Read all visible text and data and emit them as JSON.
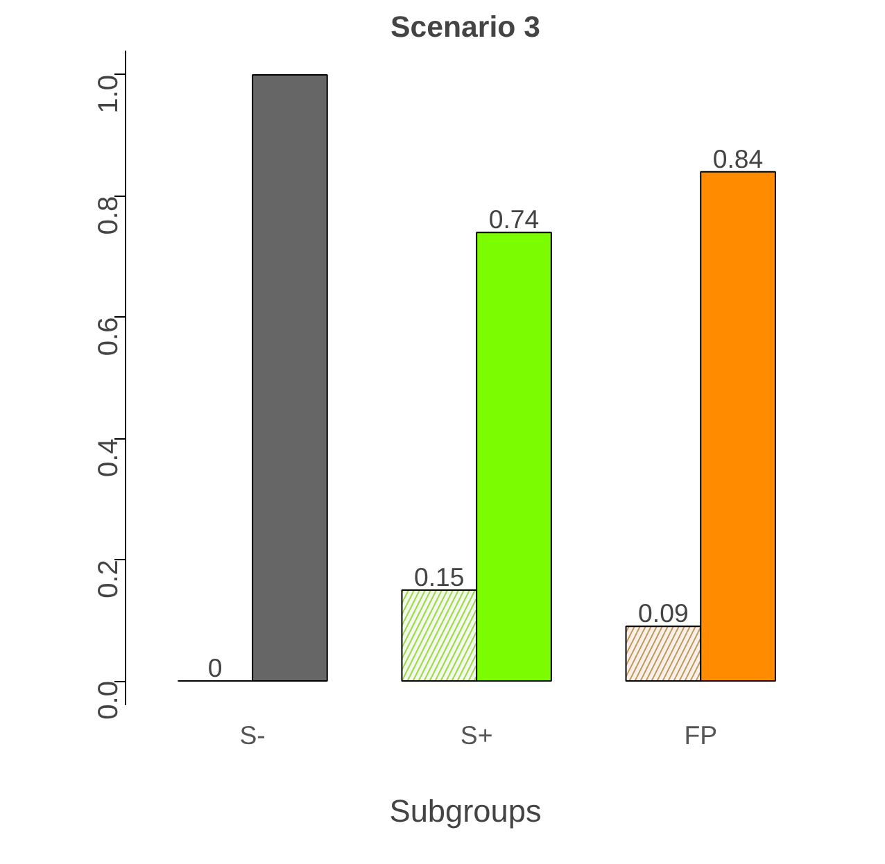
{
  "chart_data": {
    "type": "bar",
    "title": "Scenario 3",
    "xlabel": "Subgroups",
    "categories": [
      "S-",
      "S+",
      "FP"
    ],
    "series": [
      {
        "colors": [
          "#000000",
          "#9ad84a",
          "#c8955a"
        ],
        "values": [
          0,
          0.15,
          0.09
        ],
        "value_labels": [
          "0",
          "0.15",
          "0.09"
        ]
      },
      {
        "colors": [
          "#666666",
          "#7cfc00",
          "#ff8c00"
        ],
        "values": [
          1.0,
          0.74,
          0.84
        ],
        "value_labels": [
          null,
          "0.74",
          "0.84"
        ]
      }
    ],
    "ylim": [
      -0.04,
      1.04
    ],
    "yticks": [
      {
        "value": 0,
        "label": "0.0"
      },
      {
        "value": 0.2,
        "label": "0.2"
      },
      {
        "value": 0.4,
        "label": "0.4"
      },
      {
        "value": 0.6,
        "label": "0.6"
      },
      {
        "value": 0.8,
        "label": "0.8"
      },
      {
        "value": 1.0,
        "label": "1.0"
      }
    ],
    "grid": false
  }
}
